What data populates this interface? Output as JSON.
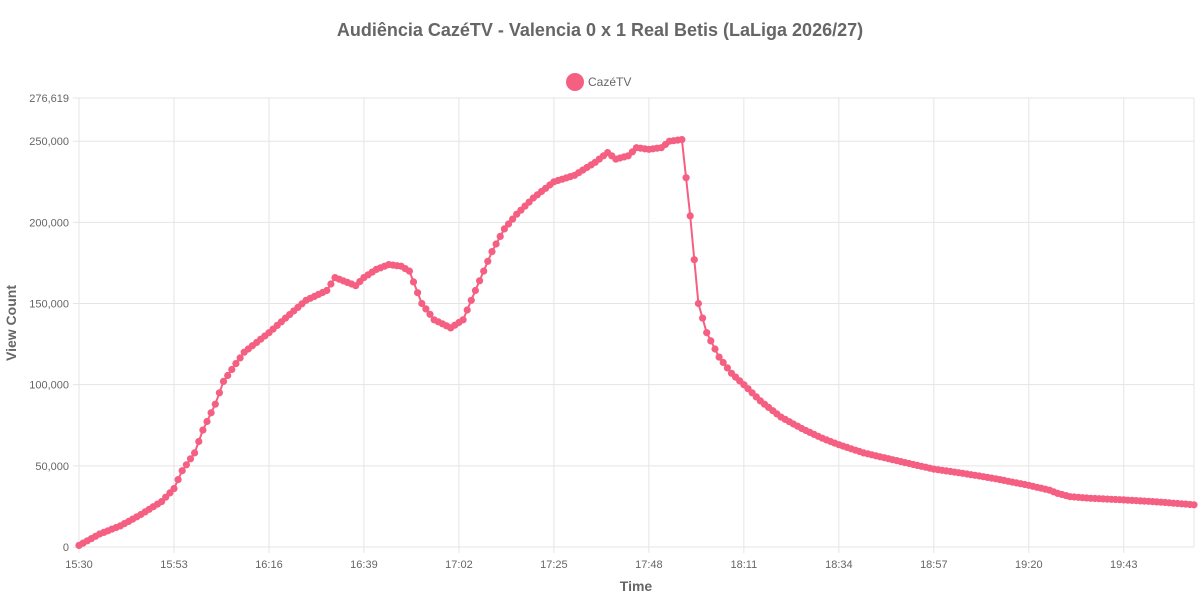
{
  "chart_data": {
    "type": "line",
    "title": "Audiência CazéTV - Valencia 0 x 1 Real Betis (LaLiga 2026/27)",
    "xlabel": "Time",
    "ylabel": "View Count",
    "ylim": [
      0,
      276619
    ],
    "y_ticks": [
      "0",
      "50,000",
      "100,000",
      "150,000",
      "200,000",
      "250,000",
      "276,619"
    ],
    "x_tick_labels": [
      "15:30",
      "15:53",
      "16:16",
      "16:39",
      "17:02",
      "17:25",
      "17:48",
      "18:11",
      "18:34",
      "18:57",
      "19:20",
      "19:43"
    ],
    "x_range": [
      "15:30",
      "20:00"
    ],
    "grid": true,
    "legend_position": "top-center",
    "series": [
      {
        "name": "CazéTV",
        "color": "#f45f82",
        "x": [
          "15:30",
          "15:35",
          "15:40",
          "15:45",
          "15:50",
          "15:53",
          "15:55",
          "15:58",
          "16:00",
          "16:03",
          "16:05",
          "16:08",
          "16:10",
          "16:13",
          "16:16",
          "16:20",
          "16:25",
          "16:30",
          "16:32",
          "16:35",
          "16:37",
          "16:39",
          "16:42",
          "16:45",
          "16:48",
          "16:50",
          "16:53",
          "16:56",
          "17:00",
          "17:03",
          "17:06",
          "17:10",
          "17:13",
          "17:16",
          "17:20",
          "17:25",
          "17:30",
          "17:35",
          "17:38",
          "17:40",
          "17:43",
          "17:45",
          "17:48",
          "17:51",
          "17:53",
          "17:56",
          "17:58",
          "18:00",
          "18:02",
          "18:05",
          "18:08",
          "18:11",
          "18:15",
          "18:20",
          "18:25",
          "18:30",
          "18:34",
          "18:40",
          "18:45",
          "18:50",
          "18:57",
          "19:05",
          "19:12",
          "19:20",
          "19:25",
          "19:27",
          "19:30",
          "19:35",
          "19:43",
          "19:50",
          "20:00"
        ],
        "values": [
          1000,
          8000,
          13000,
          20000,
          28000,
          36000,
          47000,
          58000,
          72000,
          88000,
          102000,
          113000,
          120000,
          126000,
          132000,
          141000,
          152000,
          158000,
          166000,
          163000,
          161000,
          166000,
          171000,
          174000,
          173000,
          170000,
          150000,
          140000,
          135000,
          140000,
          158000,
          182000,
          196000,
          205000,
          215000,
          225000,
          229000,
          237000,
          243000,
          239000,
          241000,
          246000,
          245000,
          246000,
          250000,
          251000,
          204000,
          150000,
          132000,
          117000,
          107000,
          100000,
          90000,
          80000,
          73000,
          67000,
          63000,
          58000,
          55000,
          52000,
          48000,
          45000,
          42000,
          38000,
          35000,
          33000,
          31000,
          30000,
          29000,
          28000,
          26000
        ]
      }
    ]
  }
}
